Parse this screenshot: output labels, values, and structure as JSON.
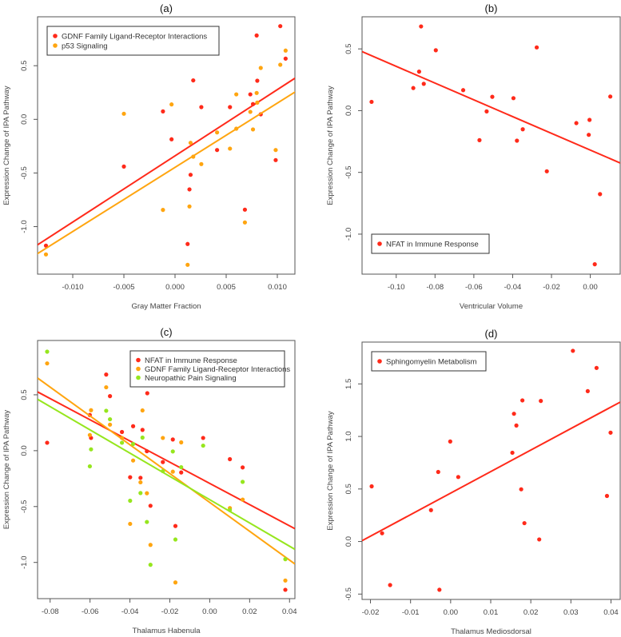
{
  "chart_data": [
    {
      "type": "scatter",
      "title": "(a)",
      "xlabel": "Gray Matter Fraction",
      "ylabel": "Expression Change of IPA Pathway",
      "xlim": [
        -0.01344,
        0.01172
      ],
      "ylim": [
        -1.443,
        0.956
      ],
      "xticks": [
        -0.01,
        -0.005,
        0.0,
        0.005,
        0.01
      ],
      "xtick_labels": [
        "-0.010",
        "-0.005",
        "0.000",
        "0.005",
        "0.010"
      ],
      "yticks": [
        -1.0,
        -0.5,
        0.0,
        0.5
      ],
      "ytick_labels": [
        "-1.0",
        "-0.5",
        "0.0",
        "0.5"
      ],
      "grid": false,
      "legend_placement": "top-left",
      "series": [
        {
          "name": "GDNF Family Ligand-Receptor Interactions",
          "color": "#ff2a1a",
          "points": [
            [
              -0.01262,
              -1.177
            ],
            [
              -0.005,
              -0.44
            ],
            [
              -0.00118,
              0.074
            ],
            [
              -0.00034,
              -0.186
            ],
            [
              0.00178,
              0.363
            ],
            [
              0.00257,
              0.114
            ],
            [
              0.00152,
              -0.517
            ],
            [
              0.00141,
              -0.653
            ],
            [
              0.00123,
              -1.162
            ],
            [
              0.00411,
              -0.286
            ],
            [
              0.00537,
              0.114
            ],
            [
              0.00736,
              0.233
            ],
            [
              0.00762,
              0.142
            ],
            [
              0.00804,
              0.36
            ],
            [
              0.00798,
              0.782
            ],
            [
              0.00838,
              0.047
            ],
            [
              0.00683,
              -0.842
            ],
            [
              0.00984,
              -0.38
            ],
            [
              0.01029,
              0.869
            ],
            [
              0.01081,
              0.566
            ]
          ],
          "fit": [
            [
              -0.01356,
              -1.177
            ],
            [
              0.01175,
              0.385
            ]
          ]
        },
        {
          "name": "p53 Signaling",
          "color": "#ffa510",
          "points": [
            [
              -0.01262,
              -1.259
            ],
            [
              -0.005,
              0.052
            ],
            [
              -0.00118,
              -0.844
            ],
            [
              -0.00034,
              0.139
            ],
            [
              0.00152,
              -0.219
            ],
            [
              0.00178,
              -0.348
            ],
            [
              0.00257,
              -0.417
            ],
            [
              0.00141,
              -0.812
            ],
            [
              0.00123,
              -1.356
            ],
            [
              0.00411,
              -0.122
            ],
            [
              0.00537,
              -0.273
            ],
            [
              0.00599,
              0.233
            ],
            [
              0.00599,
              -0.087
            ],
            [
              0.00736,
              0.07
            ],
            [
              0.00762,
              -0.094
            ],
            [
              0.00798,
              0.246
            ],
            [
              0.00804,
              0.156
            ],
            [
              0.00838,
              0.479
            ],
            [
              0.00683,
              -0.961
            ],
            [
              0.00984,
              -0.286
            ],
            [
              0.01029,
              0.509
            ],
            [
              0.01081,
              0.641
            ]
          ],
          "fit": [
            [
              -0.01356,
              -1.259
            ],
            [
              0.01175,
              0.256
            ]
          ]
        }
      ]
    },
    {
      "type": "scatter",
      "title": "(b)",
      "xlabel": "Ventricular Volume",
      "ylabel": "Expression Change of IPA Pathway",
      "xlim": [
        -0.1176,
        0.0154
      ],
      "ylim": [
        -1.324,
        0.76
      ],
      "xticks": [
        -0.1,
        -0.08,
        -0.06,
        -0.04,
        -0.02,
        0.0
      ],
      "xtick_labels": [
        "-0.10",
        "-0.08",
        "-0.06",
        "-0.04",
        "-0.02",
        "0.00"
      ],
      "yticks": [
        -1.0,
        -0.5,
        0.0,
        0.5
      ],
      "ytick_labels": [
        "-1.0",
        "-0.5",
        "0.0",
        "0.5"
      ],
      "grid": false,
      "legend_placement": "bottom-left",
      "series": [
        {
          "name": "NFAT in Immune Response",
          "color": "#ff2a1a",
          "points": [
            [
              -0.1127,
              0.071
            ],
            [
              -0.0912,
              0.183
            ],
            [
              -0.0882,
              0.316
            ],
            [
              -0.0872,
              0.682
            ],
            [
              -0.0858,
              0.217
            ],
            [
              -0.0796,
              0.489
            ],
            [
              -0.0655,
              0.166
            ],
            [
              -0.0571,
              -0.239
            ],
            [
              -0.0534,
              -0.006
            ],
            [
              -0.0505,
              0.112
            ],
            [
              -0.0396,
              0.101
            ],
            [
              -0.0378,
              -0.243
            ],
            [
              -0.0348,
              -0.151
            ],
            [
              -0.0276,
              0.512
            ],
            [
              -0.0224,
              -0.491
            ],
            [
              -0.0072,
              -0.101
            ],
            [
              -0.0008,
              -0.196
            ],
            [
              -0.0004,
              -0.075
            ],
            [
              0.0023,
              -1.244
            ],
            [
              0.005,
              -0.676
            ],
            [
              0.0103,
              0.114
            ]
          ],
          "fit": [
            [
              -0.1176,
              0.478
            ],
            [
              0.0154,
              -0.424
            ]
          ]
        }
      ]
    },
    {
      "type": "scatter",
      "title": "(c)",
      "xlabel": "Thalamus Habenula",
      "ylabel": "Expression Change of IPA Pathway",
      "xlim": [
        -0.0863,
        0.0427
      ],
      "ylim": [
        -1.324,
        0.986
      ],
      "xticks": [
        -0.08,
        -0.06,
        -0.04,
        -0.02,
        0.0,
        0.02,
        0.04
      ],
      "xtick_labels": [
        "-0.08",
        "-0.06",
        "-0.04",
        "-0.02",
        "0.00",
        "0.02",
        "0.04"
      ],
      "yticks": [
        -1.0,
        -0.5,
        0.0,
        0.5
      ],
      "ytick_labels": [
        "-1.0",
        "-0.5",
        "0.0",
        "0.5"
      ],
      "grid": false,
      "legend_placement": "top-right",
      "series": [
        {
          "name": "NFAT in Immune Response",
          "color": "#ff2a1a",
          "points": [
            [
              -0.0815,
              0.071
            ],
            [
              -0.0601,
              0.319
            ],
            [
              -0.0595,
              0.114
            ],
            [
              -0.0519,
              0.681
            ],
            [
              -0.05,
              0.488
            ],
            [
              -0.044,
              0.167
            ],
            [
              -0.0399,
              -0.238
            ],
            [
              -0.0384,
              0.219
            ],
            [
              -0.0347,
              -0.243
            ],
            [
              -0.0337,
              0.186
            ],
            [
              -0.0315,
              -0.005
            ],
            [
              -0.0313,
              0.514
            ],
            [
              -0.0297,
              -0.493
            ],
            [
              -0.0235,
              -0.102
            ],
            [
              -0.0185,
              0.1
            ],
            [
              -0.0172,
              -0.674
            ],
            [
              -0.0143,
              -0.195
            ],
            [
              -0.0033,
              0.114
            ],
            [
              0.0101,
              -0.076
            ],
            [
              0.0165,
              -0.15
            ],
            [
              0.0379,
              -1.245
            ]
          ],
          "fit": [
            [
              -0.0863,
              0.526
            ],
            [
              0.0427,
              -0.698
            ]
          ]
        },
        {
          "name": "GDNF Family Ligand-Receptor Interactions",
          "color": "#ffa510",
          "points": [
            [
              -0.0815,
              0.781
            ],
            [
              -0.0601,
              0.14
            ],
            [
              -0.0595,
              0.362
            ],
            [
              -0.0519,
              0.567
            ],
            [
              -0.05,
              0.233
            ],
            [
              -0.044,
              0.114
            ],
            [
              -0.0399,
              -0.655
            ],
            [
              -0.0384,
              -0.088
            ],
            [
              -0.0347,
              -0.283
            ],
            [
              -0.0337,
              0.36
            ],
            [
              -0.0315,
              -0.381
            ],
            [
              -0.0297,
              -0.843
            ],
            [
              -0.0235,
              0.114
            ],
            [
              -0.0185,
              -0.188
            ],
            [
              -0.0172,
              -1.179
            ],
            [
              -0.0143,
              0.074
            ],
            [
              0.0101,
              -0.514
            ],
            [
              0.0165,
              -0.438
            ],
            [
              0.0379,
              -1.162
            ]
          ],
          "fit": [
            [
              -0.0863,
              0.65
            ],
            [
              0.0427,
              -1.014
            ]
          ]
        },
        {
          "name": "Neuropathic Pain Signaling",
          "color": "#96e61e",
          "points": [
            [
              -0.0815,
              0.886
            ],
            [
              -0.0601,
              -0.14
            ],
            [
              -0.0595,
              0.012
            ],
            [
              -0.0519,
              0.357
            ],
            [
              -0.05,
              0.281
            ],
            [
              -0.044,
              0.071
            ],
            [
              -0.0399,
              -0.448
            ],
            [
              -0.0384,
              0.06
            ],
            [
              -0.0347,
              -0.379
            ],
            [
              -0.0337,
              0.117
            ],
            [
              -0.0315,
              -0.638
            ],
            [
              -0.0297,
              -1.021
            ],
            [
              -0.0235,
              -0.183
            ],
            [
              -0.0185,
              -0.007
            ],
            [
              -0.0172,
              -0.795
            ],
            [
              -0.0143,
              -0.148
            ],
            [
              -0.0033,
              0.045
            ],
            [
              0.0101,
              -0.531
            ],
            [
              0.0165,
              -0.279
            ],
            [
              0.0379,
              -0.971
            ]
          ],
          "fit": [
            [
              -0.0863,
              0.46
            ],
            [
              0.0427,
              -0.883
            ]
          ]
        }
      ]
    },
    {
      "type": "scatter",
      "title": "(d)",
      "xlabel": "Thalamus Mediosdorsal",
      "ylabel": "Expression Change of IPA Pathway",
      "xlim": [
        -0.0221,
        0.0423
      ],
      "ylim": [
        -0.551,
        1.898
      ],
      "xticks": [
        -0.02,
        -0.01,
        0.0,
        0.01,
        0.02,
        0.03,
        0.04
      ],
      "xtick_labels": [
        "-0.02",
        "-0.01",
        "0.00",
        "0.01",
        "0.02",
        "0.03",
        "0.04"
      ],
      "yticks": [
        -0.5,
        0.0,
        0.5,
        1.0,
        1.5
      ],
      "ytick_labels": [
        "-0.5",
        "0.0",
        "0.5",
        "1.0",
        "1.5"
      ],
      "grid": false,
      "legend_placement": "top-left",
      "series": [
        {
          "name": "Sphingomyelin Metabolism",
          "color": "#ff2a1a",
          "points": [
            [
              -0.0197,
              0.525
            ],
            [
              -0.0171,
              0.079
            ],
            [
              -0.0151,
              -0.414
            ],
            [
              -0.0049,
              0.299
            ],
            [
              -0.0031,
              0.662
            ],
            [
              -0.0028,
              -0.459
            ],
            [
              -0.0001,
              0.952
            ],
            [
              0.0019,
              0.614
            ],
            [
              0.0154,
              0.845
            ],
            [
              0.0158,
              1.216
            ],
            [
              0.0164,
              1.104
            ],
            [
              0.0176,
              0.497
            ],
            [
              0.0179,
              1.343
            ],
            [
              0.0184,
              0.175
            ],
            [
              0.0221,
              0.02
            ],
            [
              0.0225,
              1.338
            ],
            [
              0.0305,
              1.815
            ],
            [
              0.0342,
              1.431
            ],
            [
              0.0364,
              1.652
            ],
            [
              0.039,
              0.434
            ],
            [
              0.0399,
              1.036
            ]
          ],
          "fit": [
            [
              -0.0221,
              0.008
            ],
            [
              0.0423,
              1.327
            ]
          ]
        }
      ]
    }
  ]
}
